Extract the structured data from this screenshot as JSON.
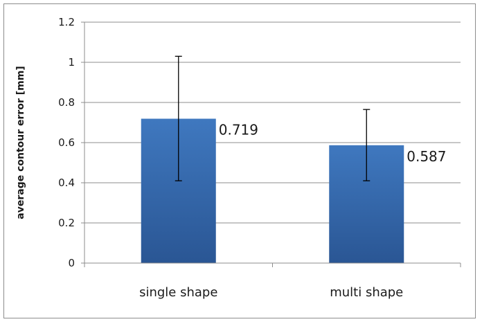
{
  "chart_data": {
    "type": "bar",
    "title": "",
    "xlabel": "",
    "ylabel": "average contour error [mm]",
    "categories": [
      "single shape",
      "multi shape"
    ],
    "values": [
      0.719,
      0.587
    ],
    "data_labels": [
      "0.719",
      "0.587"
    ],
    "error_bars": [
      {
        "low": 0.41,
        "high": 1.03
      },
      {
        "low": 0.41,
        "high": 0.765
      }
    ],
    "ylim": [
      0,
      1.2
    ],
    "yticks": [
      0,
      0.2,
      0.4,
      0.6,
      0.8,
      1,
      1.2
    ],
    "ytick_labels": [
      "0",
      "0.2",
      "0.4",
      "0.6",
      "0.8",
      "1",
      "1.2"
    ],
    "grid": true,
    "legend": "none",
    "bar_color": "#3f78bf",
    "bar_color_dark": "#2a5694"
  }
}
